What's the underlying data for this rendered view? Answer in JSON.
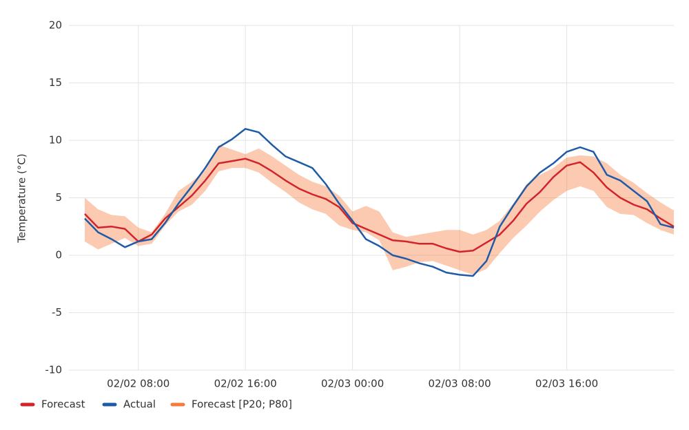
{
  "chart_data": {
    "type": "line",
    "y_label": "Temperature (°C)",
    "x": [
      "02/02 04:00",
      "02/02 05:00",
      "02/02 06:00",
      "02/02 07:00",
      "02/02 08:00",
      "02/02 09:00",
      "02/02 10:00",
      "02/02 11:00",
      "02/02 12:00",
      "02/02 13:00",
      "02/02 14:00",
      "02/02 15:00",
      "02/02 16:00",
      "02/02 17:00",
      "02/02 18:00",
      "02/02 19:00",
      "02/02 20:00",
      "02/02 21:00",
      "02/02 22:00",
      "02/02 23:00",
      "02/03 00:00",
      "02/03 01:00",
      "02/03 02:00",
      "02/03 03:00",
      "02/03 04:00",
      "02/03 05:00",
      "02/03 06:00",
      "02/03 07:00",
      "02/03 08:00",
      "02/03 09:00",
      "02/03 10:00",
      "02/03 11:00",
      "02/03 12:00",
      "02/03 13:00",
      "02/03 14:00",
      "02/03 15:00",
      "02/03 16:00",
      "02/03 17:00",
      "02/03 18:00",
      "02/03 19:00",
      "02/03 20:00",
      "02/03 21:00",
      "02/03 22:00",
      "02/03 23:00",
      "02/04 00:00"
    ],
    "xlim": [
      "02/02 04:00",
      "02/04 00:00"
    ],
    "xticks": [
      "02/02 08:00",
      "02/02 16:00",
      "02/03 00:00",
      "02/03 08:00",
      "02/03 16:00"
    ],
    "ylim": [
      -10,
      20
    ],
    "yticks": [
      -10,
      -5,
      0,
      5,
      10,
      15,
      20
    ],
    "grid": true,
    "legend": "bottom-left",
    "series": [
      {
        "name": "Forecast",
        "color": "#d2232a",
        "values": [
          3.6,
          2.4,
          2.5,
          2.3,
          1.2,
          1.8,
          3.2,
          4.2,
          5.2,
          6.5,
          8.0,
          8.2,
          8.4,
          8.0,
          7.3,
          6.5,
          5.8,
          5.3,
          4.9,
          4.2,
          2.8,
          2.3,
          1.8,
          1.3,
          1.2,
          1.0,
          1.0,
          0.6,
          0.3,
          0.4,
          1.1,
          1.8,
          3.0,
          4.5,
          5.5,
          6.8,
          7.8,
          8.1,
          7.2,
          5.9,
          5.0,
          4.4,
          4.0,
          3.2,
          2.5
        ]
      },
      {
        "name": "Actual",
        "color": "#1f5aa6",
        "values": [
          3.2,
          2.0,
          1.4,
          0.7,
          1.2,
          1.4,
          2.8,
          4.5,
          6.0,
          7.6,
          9.4,
          10.1,
          11.0,
          10.7,
          9.6,
          8.6,
          8.1,
          7.6,
          6.2,
          4.5,
          3.0,
          1.4,
          0.8,
          0.0,
          -0.3,
          -0.7,
          -1.0,
          -1.5,
          -1.7,
          -1.8,
          -0.5,
          2.5,
          4.3,
          6.0,
          7.2,
          8.0,
          9.0,
          9.4,
          9.0,
          7.0,
          6.5,
          5.6,
          4.7,
          2.7,
          2.4
        ]
      },
      {
        "name": "Forecast [P20; P80]",
        "color": "#f47a3d",
        "type": "band",
        "lower": [
          1.2,
          0.5,
          1.0,
          1.5,
          0.8,
          1.0,
          2.6,
          3.8,
          4.4,
          5.6,
          7.3,
          7.6,
          7.6,
          7.2,
          6.3,
          5.5,
          4.6,
          4.0,
          3.6,
          2.6,
          2.2,
          2.0,
          1.3,
          -1.3,
          -1.0,
          -0.6,
          -0.5,
          -0.9,
          -1.3,
          -1.7,
          -1.2,
          0.2,
          1.5,
          2.6,
          3.8,
          4.8,
          5.6,
          6.0,
          5.6,
          4.2,
          3.6,
          3.5,
          2.8,
          2.2,
          1.8
        ],
        "upper": [
          5.0,
          4.0,
          3.5,
          3.4,
          2.4,
          2.0,
          3.6,
          5.6,
          6.4,
          7.4,
          9.6,
          9.2,
          8.8,
          9.3,
          8.6,
          7.8,
          7.0,
          6.4,
          6.0,
          5.2,
          3.8,
          4.3,
          3.8,
          2.0,
          1.6,
          1.8,
          2.0,
          2.2,
          2.2,
          1.8,
          2.2,
          3.0,
          4.5,
          6.2,
          7.0,
          7.6,
          8.5,
          8.7,
          8.6,
          8.0,
          7.0,
          6.3,
          5.4,
          4.6,
          3.9
        ]
      }
    ]
  }
}
